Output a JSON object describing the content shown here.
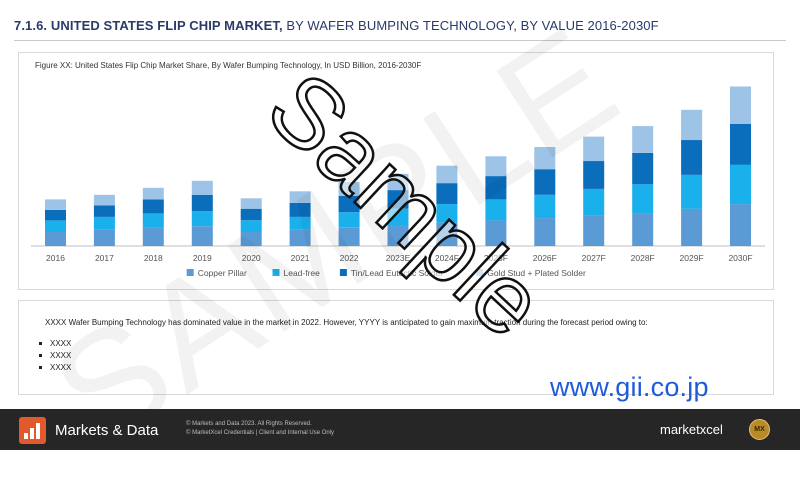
{
  "heading": {
    "bold": "7.1.6. UNITED STATES FLIP CHIP MARKET,",
    "rest": " BY WAFER BUMPING TECHNOLOGY, BY VALUE 2016-2030F"
  },
  "figure_caption": "Figure XX: United States Flip Chip Market Share, By Wafer Bumping Technology, In USD Billion, 2016-2030F",
  "chart_data": {
    "type": "bar",
    "stacked": true,
    "title": "Figure XX: United States Flip Chip Market Share, By Wafer Bumping Technology, In USD Billion, 2016-2030F",
    "categories": [
      "2016",
      "2017",
      "2018",
      "2019",
      "2020",
      "2021",
      "2022",
      "2023E",
      "2024F",
      "2025F",
      "2026F",
      "2027F",
      "2028F",
      "2029F",
      "2030F"
    ],
    "ylim": [
      0,
      140
    ],
    "y_axis_visible": false,
    "grid": false,
    "legend_position": "bottom",
    "series": [
      {
        "name": "Copper Pillar",
        "color": "#5b9bd5",
        "values": [
          12,
          14,
          16,
          17,
          12,
          14,
          16,
          18,
          20,
          22,
          24,
          26,
          28,
          32,
          36
        ]
      },
      {
        "name": "Lead-free",
        "color": "#1ab0ec",
        "values": [
          10,
          11,
          12,
          13,
          10,
          11,
          13,
          14,
          16,
          18,
          20,
          23,
          25,
          29,
          34
        ]
      },
      {
        "name": "Tin/Lead Eutectic Solder",
        "color": "#0a6ebd",
        "values": [
          9,
          10,
          12,
          14,
          10,
          12,
          14,
          16,
          18,
          20,
          22,
          24,
          27,
          30,
          35
        ]
      },
      {
        "name": "Gold Stud + Plated Solder",
        "color": "#9dc3e6",
        "values": [
          9,
          9,
          10,
          12,
          9,
          10,
          12,
          14,
          15,
          17,
          19,
          21,
          23,
          26,
          32
        ]
      }
    ]
  },
  "summary_text": "XXXX Wafer Bumping Technology has dominated value in the market in 2022. However, YYYY is anticipated to gain maximum traction during the forecast period owing to:",
  "bullets": [
    "XXXX",
    "XXXX",
    "XXXX"
  ],
  "gii_link": "www.gii.co.jp",
  "footer": {
    "brand_name": "Markets & Data",
    "copyright": "© Markets and Data 2023. All Rights Reserved.",
    "confidential": "© MarketXcel  Credentials | Client and Internal Use Only",
    "logo": "marketxcel",
    "seal": "MX"
  },
  "watermarks": {
    "sample": "Sample",
    "big": "SAMPLE"
  }
}
